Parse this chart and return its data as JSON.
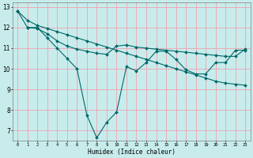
{
  "title": "",
  "xlabel": "Humidex (Indice chaleur)",
  "ylabel": "",
  "background_color": "#c8ecec",
  "grid_color": "#f0a0b0",
  "line_color": "#006868",
  "xlim": [
    -0.5,
    23.5
  ],
  "ylim": [
    6.5,
    13.2
  ],
  "yticks": [
    7,
    8,
    9,
    10,
    11,
    12,
    13
  ],
  "xticks": [
    0,
    1,
    2,
    3,
    4,
    5,
    6,
    7,
    8,
    9,
    10,
    11,
    12,
    13,
    14,
    15,
    16,
    17,
    18,
    19,
    20,
    21,
    22,
    23
  ],
  "line1_x": [
    0,
    1,
    2,
    3,
    4,
    5,
    6,
    7,
    8,
    9,
    10,
    11,
    12,
    13,
    14,
    15,
    16,
    17,
    18,
    19,
    20,
    21,
    22,
    23
  ],
  "line1_y": [
    12.8,
    12.0,
    12.0,
    11.5,
    11.0,
    10.5,
    10.0,
    7.75,
    6.65,
    7.4,
    7.9,
    10.1,
    9.9,
    10.3,
    10.85,
    10.85,
    10.45,
    9.95,
    9.75,
    9.75,
    10.3,
    10.3,
    10.9,
    10.9
  ],
  "line2_x": [
    0,
    1,
    2,
    3,
    4,
    5,
    6,
    7,
    8,
    9,
    10,
    11,
    12,
    13,
    14,
    15,
    16,
    17,
    18,
    19,
    20,
    21,
    22,
    23
  ],
  "line2_y": [
    12.8,
    12.35,
    12.1,
    11.95,
    11.8,
    11.65,
    11.5,
    11.35,
    11.2,
    11.05,
    10.9,
    10.75,
    10.6,
    10.45,
    10.3,
    10.15,
    10.0,
    9.85,
    9.7,
    9.55,
    9.4,
    9.3,
    9.25,
    9.2
  ],
  "line3_x": [
    1,
    2,
    3,
    4,
    5,
    6,
    7,
    8,
    9,
    10,
    11,
    12,
    13,
    14,
    15,
    16,
    17,
    18,
    19,
    20,
    21,
    22,
    23
  ],
  "line3_y": [
    12.0,
    11.95,
    11.7,
    11.35,
    11.1,
    10.95,
    10.85,
    10.75,
    10.7,
    11.1,
    11.15,
    11.05,
    11.0,
    10.95,
    10.9,
    10.85,
    10.8,
    10.75,
    10.7,
    10.65,
    10.6,
    10.6,
    10.95
  ]
}
